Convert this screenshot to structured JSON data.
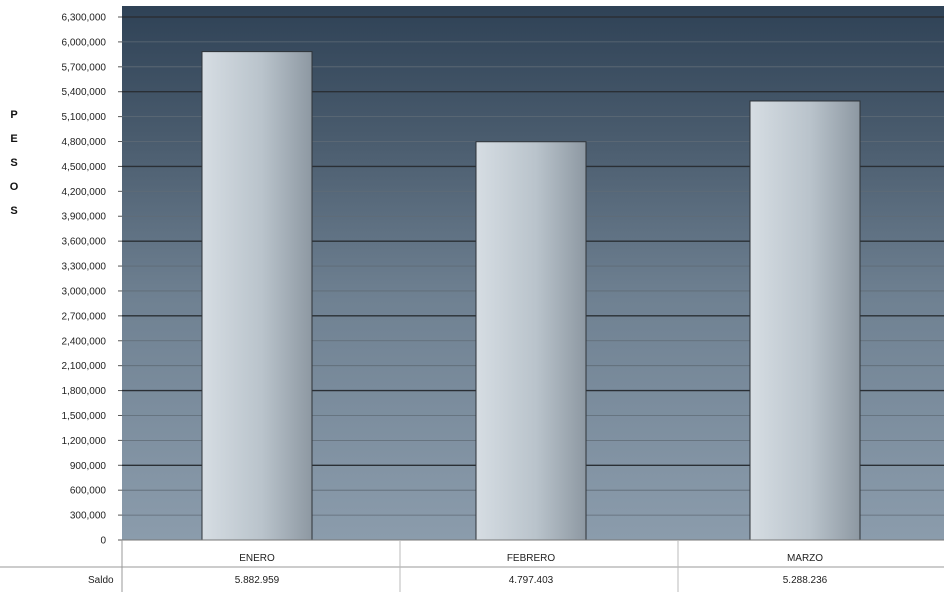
{
  "chart_data": {
    "type": "bar",
    "title": "",
    "xlabel": "",
    "ylabel": "PESOS",
    "categories": [
      "ENERO",
      "FEBRERO",
      "MARZO"
    ],
    "series": [
      {
        "name": "Saldo",
        "values": [
          5882959,
          4797403,
          5288236
        ]
      }
    ],
    "ylim": [
      0,
      6300000
    ],
    "ytick_step": 300000,
    "yticks": [
      "0",
      "300,000",
      "600,000",
      "900,000",
      "1,200,000",
      "1,500,000",
      "1,800,000",
      "2,100,000",
      "2,400,000",
      "2,700,000",
      "3,000,000",
      "3,300,000",
      "3,600,000",
      "3,900,000",
      "4,200,000",
      "4,500,000",
      "4,800,000",
      "5,100,000",
      "5,400,000",
      "5,700,000",
      "6,000,000",
      "6,300,000"
    ],
    "data_table": {
      "row_label": "Saldo",
      "values": [
        "5.882.959",
        "4.797.403",
        "5.288.236"
      ]
    },
    "grid": true,
    "legend": "none",
    "colors": {
      "plot_bg_top": "#2f4256",
      "plot_bg_bottom": "#8b9cac",
      "bar_light": "#d6dde3",
      "bar_dark": "#8d98a2"
    }
  }
}
